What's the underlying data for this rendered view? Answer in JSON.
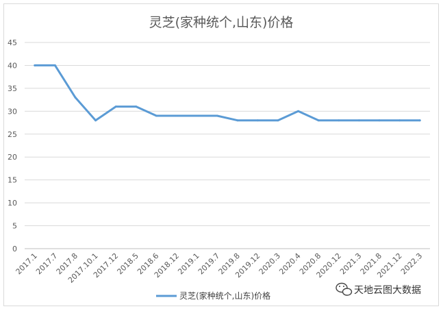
{
  "chart_data": {
    "type": "line",
    "title": "灵芝(家种统个,山东)价格",
    "xlabel": "",
    "ylabel": "",
    "ylim": [
      0,
      45
    ],
    "yticks": [
      0,
      5,
      10,
      15,
      20,
      25,
      30,
      35,
      40,
      45
    ],
    "grid": true,
    "legend_position": "bottom",
    "line_color": "#5b9bd5",
    "categories": [
      "2017.1",
      "2017.7",
      "2017.8",
      "2017.10.1",
      "2017.12",
      "2018.5",
      "2018.6",
      "2018.12",
      "2019.1",
      "2019.7",
      "2019.8",
      "2019.12",
      "2020.3",
      "2020.4",
      "2020.8",
      "2020.12",
      "2021.3",
      "2021.8",
      "2021.12",
      "2022.3"
    ],
    "series": [
      {
        "name": "灵芝(家种统个,山东)价格",
        "values": [
          40,
          40,
          33,
          28,
          31,
          31,
          29,
          29,
          29,
          29,
          28,
          28,
          28,
          30,
          28,
          28,
          28,
          28,
          28,
          28
        ]
      }
    ]
  },
  "watermark": {
    "icon": "wechat-icon",
    "text": "天地云图大数据"
  }
}
